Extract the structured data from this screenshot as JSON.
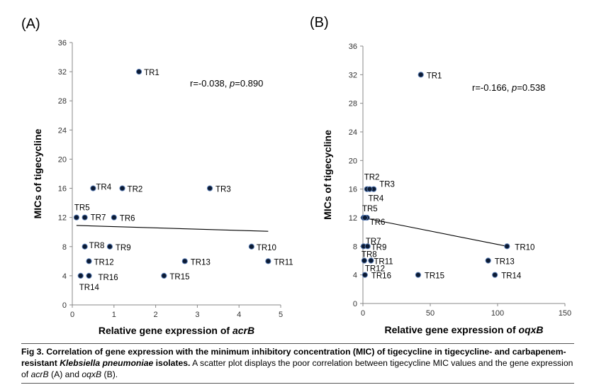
{
  "chart_data": [
    {
      "type": "scatter",
      "panel_label": "(A)",
      "xlabel": "Relative gene expression of ",
      "xlabel_gene": "acrB",
      "ylabel": "MICs of tigecycline",
      "xlim": [
        0,
        5
      ],
      "ylim": [
        0,
        36
      ],
      "xticks": [
        "0",
        "1",
        "2",
        "3",
        "4",
        "5"
      ],
      "yticks": [
        "0",
        "4",
        "8",
        "12",
        "16",
        "20",
        "24",
        "28",
        "32",
        "36"
      ],
      "annotation": {
        "r_text": "r=-0.038, ",
        "p_sym": "p",
        "p_text": "=0.890"
      },
      "trendline": [
        [
          0.1,
          10.9
        ],
        [
          4.7,
          10.1
        ]
      ],
      "points": [
        {
          "label": "TR1",
          "x": 1.6,
          "y": 32
        },
        {
          "label": "TR2",
          "x": 1.2,
          "y": 16
        },
        {
          "label": "TR3",
          "x": 3.3,
          "y": 16
        },
        {
          "label": "TR4",
          "x": 0.5,
          "y": 16
        },
        {
          "label": "TR5",
          "x": 0.1,
          "y": 12
        },
        {
          "label": "TR6",
          "x": 1.0,
          "y": 12
        },
        {
          "label": "TR7",
          "x": 0.3,
          "y": 12
        },
        {
          "label": "TR8",
          "x": 0.3,
          "y": 8
        },
        {
          "label": "TR9",
          "x": 0.9,
          "y": 8
        },
        {
          "label": "TR10",
          "x": 4.3,
          "y": 8
        },
        {
          "label": "TR11",
          "x": 4.7,
          "y": 6
        },
        {
          "label": "TR12",
          "x": 0.4,
          "y": 6
        },
        {
          "label": "TR13",
          "x": 2.7,
          "y": 6
        },
        {
          "label": "TR14",
          "x": 0.2,
          "y": 4
        },
        {
          "label": "TR15",
          "x": 2.2,
          "y": 4
        },
        {
          "label": "TR16",
          "x": 0.4,
          "y": 4
        }
      ]
    },
    {
      "type": "scatter",
      "panel_label": "(B)",
      "xlabel": "Relative gene expression of ",
      "xlabel_gene": "oqxB",
      "ylabel": "MICs of tigecycline",
      "xlim": [
        0,
        150
      ],
      "ylim": [
        0,
        36
      ],
      "xticks": [
        "0",
        "50",
        "100",
        "150"
      ],
      "yticks": [
        "0",
        "4",
        "8",
        "12",
        "16",
        "20",
        "24",
        "28",
        "32",
        "36"
      ],
      "annotation": {
        "r_text": "r=-0.166, ",
        "p_sym": "p",
        "p_text": "=0.538"
      },
      "trendline": [
        [
          0,
          12
        ],
        [
          107,
          8
        ]
      ],
      "points": [
        {
          "label": "TR1",
          "x": 43,
          "y": 32
        },
        {
          "label": "TR2",
          "x": 3,
          "y": 16
        },
        {
          "label": "TR3",
          "x": 8,
          "y": 16
        },
        {
          "label": "TR4",
          "x": 5,
          "y": 16
        },
        {
          "label": "TR5",
          "x": 0.5,
          "y": 12
        },
        {
          "label": "TR6",
          "x": 3,
          "y": 12
        },
        {
          "label": "TR7",
          "x": 1.5,
          "y": 12
        },
        {
          "label": "TR8",
          "x": 0.5,
          "y": 8
        },
        {
          "label": "TR9",
          "x": 3.5,
          "y": 8
        },
        {
          "label": "TR10",
          "x": 107,
          "y": 8
        },
        {
          "label": "TR11",
          "x": 6,
          "y": 6
        },
        {
          "label": "TR12",
          "x": 1,
          "y": 6
        },
        {
          "label": "TR13",
          "x": 93,
          "y": 6
        },
        {
          "label": "TR14",
          "x": 98,
          "y": 4
        },
        {
          "label": "TR15",
          "x": 41,
          "y": 4
        },
        {
          "label": "TR16",
          "x": 1.5,
          "y": 4
        }
      ]
    }
  ],
  "caption": {
    "title_a": "Fig 3. Correlation of gene expression with the minimum inhibitory concentration (MIC) of tigecycline in tigecycline- and carbapenem-resistant ",
    "title_species": "Klebsiella pneumoniae",
    "title_b": " isolates.",
    "body_a": " A scatter plot displays the poor correlation between tigecycline MIC values and the gene expression of ",
    "gene1": "acrB",
    "body_b": " (A) and ",
    "gene2": "oqxB",
    "body_c": " (B)."
  }
}
